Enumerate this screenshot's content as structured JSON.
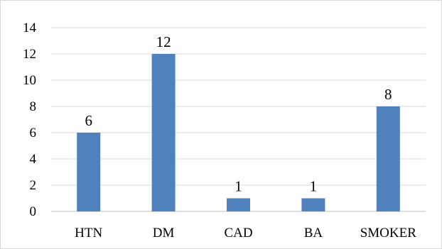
{
  "chart_data": {
    "type": "bar",
    "categories": [
      "HTN",
      "DM",
      "CAD",
      "BA",
      "SMOKER"
    ],
    "values": [
      6,
      12,
      1,
      1,
      8
    ],
    "data_labels": [
      "6",
      "12",
      "1",
      "1",
      "8"
    ],
    "ylim": [
      0,
      14
    ],
    "yticks": [
      0,
      2,
      4,
      6,
      8,
      10,
      12,
      14
    ],
    "ytick_labels": [
      "0",
      "2",
      "4",
      "6",
      "8",
      "10",
      "12",
      "14"
    ],
    "grid": true,
    "legend": "none",
    "bar_color": "#4f81bd",
    "grid_color": "#d9d9d9",
    "title": "",
    "xlabel": "",
    "ylabel": ""
  }
}
